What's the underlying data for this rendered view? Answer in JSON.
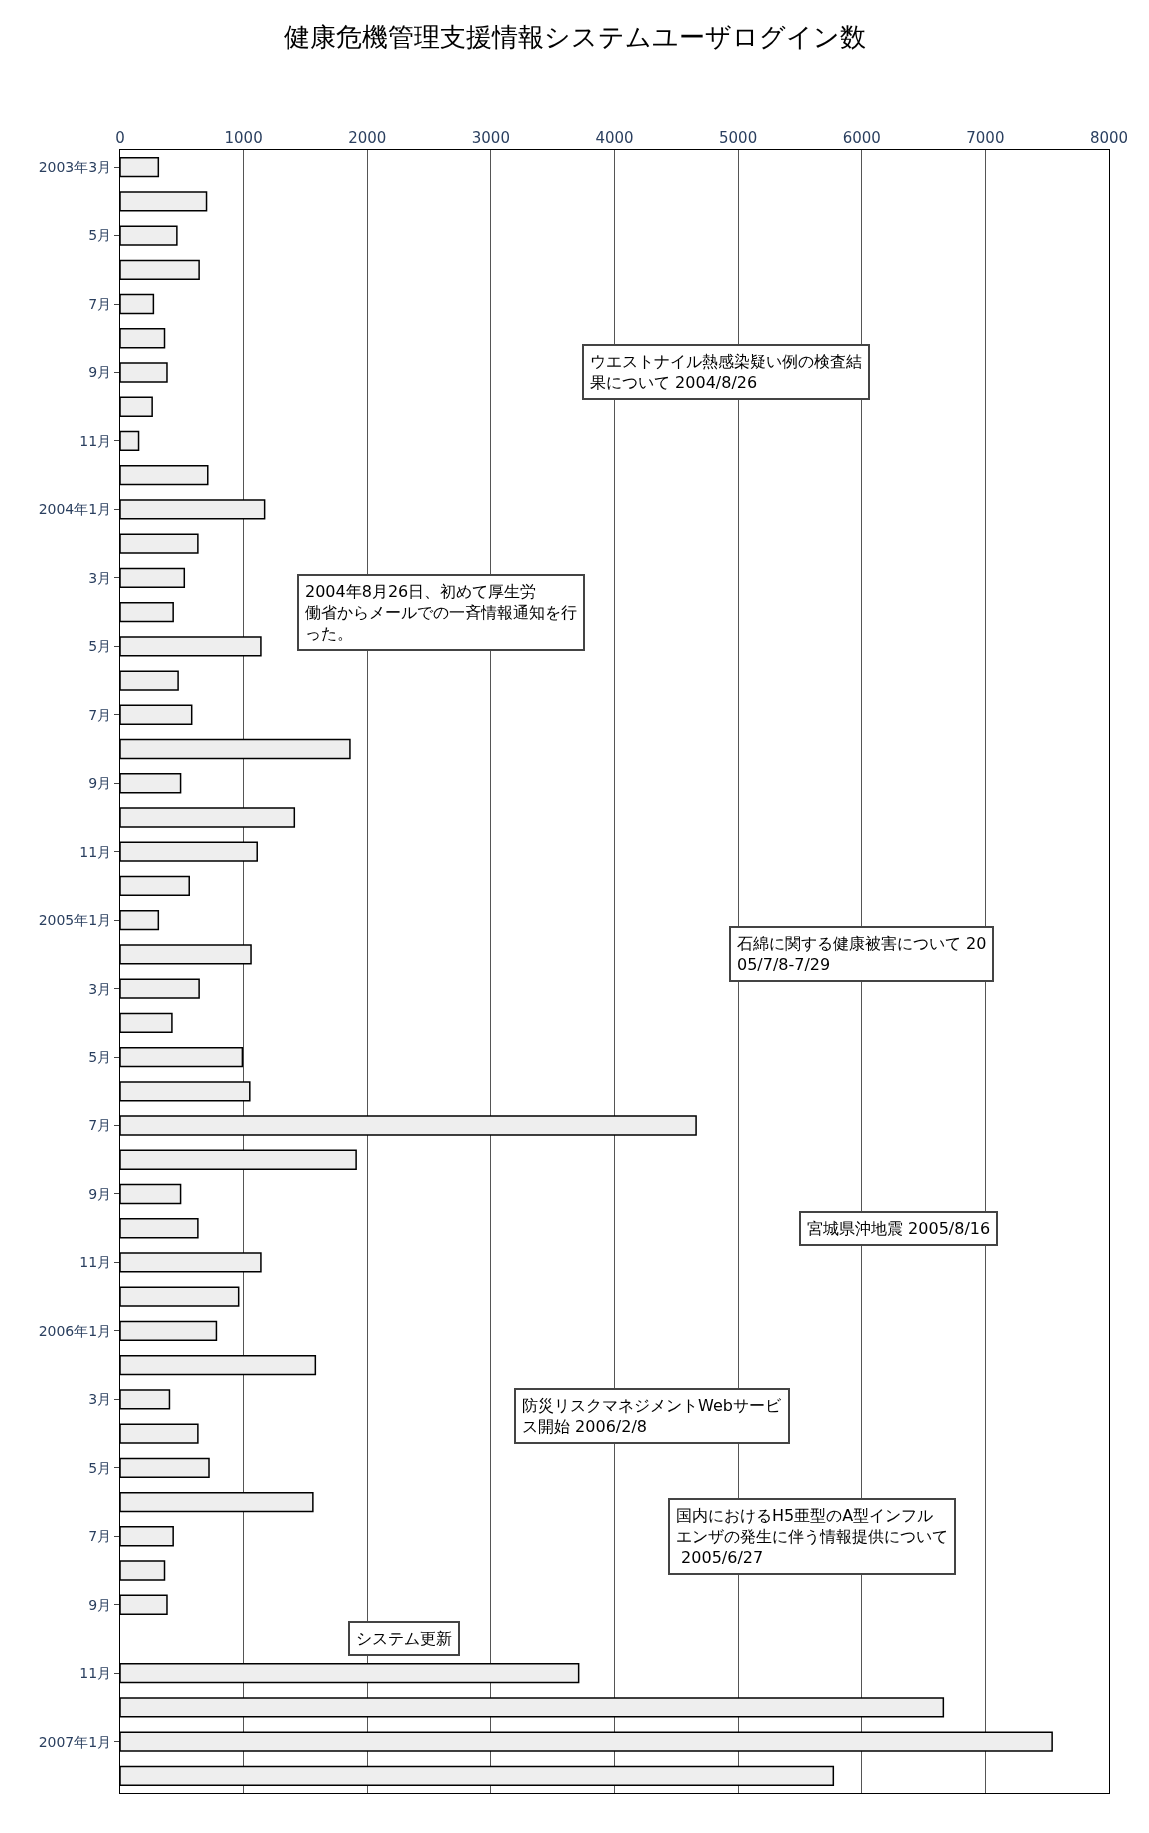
{
  "chart_data": {
    "type": "bar",
    "orientation": "horizontal",
    "title": "健康危機管理支援情報システムユーザログイン数",
    "categories": [
      "2003年3月",
      null,
      "5月",
      null,
      "7月",
      null,
      "9月",
      null,
      "11月",
      null,
      "2004年1月",
      null,
      "3月",
      null,
      "5月",
      null,
      "7月",
      null,
      "9月",
      null,
      "11月",
      null,
      "2005年1月",
      null,
      "3月",
      null,
      "5月",
      null,
      "7月",
      null,
      "9月",
      null,
      "11月",
      null,
      "2006年1月",
      null,
      "3月",
      null,
      "5月",
      null,
      "7月",
      null,
      "9月",
      null,
      "11月",
      null,
      "2007年1月",
      null
    ],
    "values": [
      310,
      700,
      460,
      640,
      270,
      360,
      380,
      260,
      150,
      710,
      1170,
      630,
      520,
      430,
      1140,
      470,
      580,
      1860,
      490,
      1410,
      1110,
      560,
      310,
      1060,
      640,
      420,
      990,
      1050,
      4660,
      1910,
      490,
      630,
      1140,
      960,
      780,
      1580,
      400,
      630,
      720,
      1560,
      430,
      360,
      380,
      null,
      3710,
      6660,
      7540,
      5770
    ],
    "color": "#eeeeee",
    "xlim": [
      0,
      8000
    ],
    "xticks": [
      0,
      1000,
      2000,
      3000,
      4000,
      5000,
      6000,
      7000,
      8000
    ],
    "grid": "x",
    "annotations": [
      "2004年8月26日、初めて厚生労働省からメールでの一斉情報通知を行った。",
      "ウエストナイル熱感染疑い例の検査結果について 2004/8/26",
      "石綿に関する健康被害について 2005/7/8-7/29",
      "宮城県沖地震 2005/8/16",
      "防災リスクマネジメントWebサービス開始 2006/2/8",
      "国内におけるH5亜型のA型インフルエンザの発生に伴う情報提供について 2005/6/27",
      "システム更新"
    ]
  }
}
